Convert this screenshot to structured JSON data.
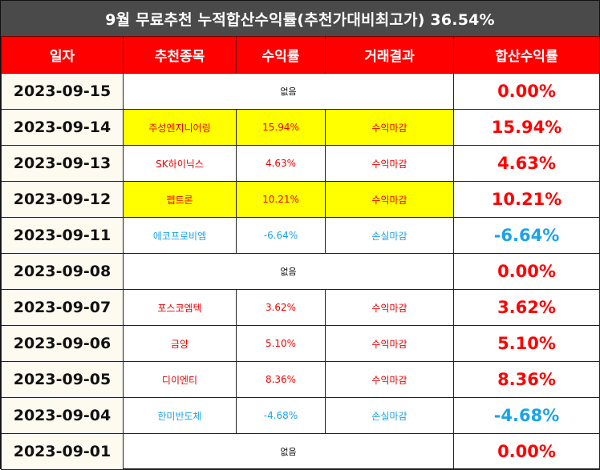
{
  "title": "9월 무료추천 누적합산수익률(추천가대비최고가) 36.54%",
  "headers": [
    "일자",
    "추천종목",
    "수익률",
    "거래결과",
    "합산수익률"
  ],
  "rows": [
    {
      "date": "2023-09-15",
      "none": "없음",
      "total": "0.00%",
      "color": "red"
    },
    {
      "date": "2023-09-14",
      "stock": "주성엔지니어링",
      "rate": "15.94%",
      "result": "수익마감",
      "total": "15.94%",
      "color": "red",
      "highlight": true
    },
    {
      "date": "2023-09-13",
      "stock": "SK하이닉스",
      "rate": "4.63%",
      "result": "수익마감",
      "total": "4.63%",
      "color": "red"
    },
    {
      "date": "2023-09-12",
      "stock": "펩트론",
      "rate": "10.21%",
      "result": "수익마감",
      "total": "10.21%",
      "color": "red",
      "highlight": true
    },
    {
      "date": "2023-09-11",
      "stock": "에코프로비엠",
      "rate": "-6.64%",
      "result": "손실마감",
      "total": "-6.64%",
      "color": "blue"
    },
    {
      "date": "2023-09-08",
      "none": "없음",
      "total": "0.00%",
      "color": "red"
    },
    {
      "date": "2023-09-07",
      "stock": "포스코엠텍",
      "rate": "3.62%",
      "result": "수익마감",
      "total": "3.62%",
      "color": "red"
    },
    {
      "date": "2023-09-06",
      "stock": "금양",
      "rate": "5.10%",
      "result": "수익마감",
      "total": "5.10%",
      "color": "red"
    },
    {
      "date": "2023-09-05",
      "stock": "디이엔티",
      "rate": "8.36%",
      "result": "수익마감",
      "total": "8.36%",
      "color": "red"
    },
    {
      "date": "2023-09-04",
      "stock": "한미반도체",
      "rate": "-4.68%",
      "result": "손실마감",
      "total": "-4.68%",
      "color": "blue"
    },
    {
      "date": "2023-09-01",
      "none": "없음",
      "total": "0.00%",
      "color": "red"
    }
  ],
  "colors": {
    "header_bg": "#ff0000",
    "title_bg": "#4a4a4a",
    "profit": "#ff0000",
    "loss": "#1aa3e8",
    "highlight": "#ffff00"
  }
}
